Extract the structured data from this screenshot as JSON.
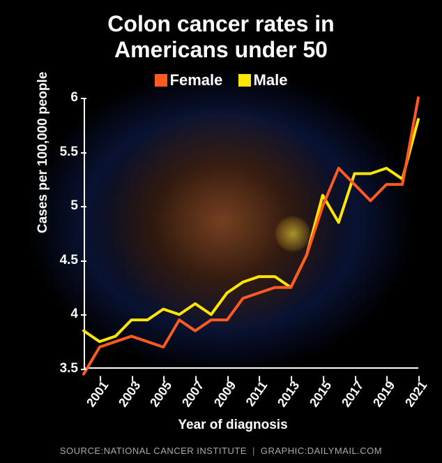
{
  "title_line1": "Colon cancer rates in",
  "title_line2": "Americans under 50",
  "legend": {
    "female": {
      "label": "Female",
      "color": "#ff5a1f"
    },
    "male": {
      "label": "Male",
      "color": "#ffe600"
    }
  },
  "chart": {
    "type": "line",
    "background_color": "transparent",
    "axis_color": "#ffffff",
    "ylabel": "Cases per 100,000 people",
    "xlabel": "Year of diagnosis",
    "ylim": [
      3.5,
      6.0
    ],
    "ytick_step": 0.5,
    "yticks": [
      3.5,
      4,
      4.5,
      5,
      5.5,
      6
    ],
    "xlim": [
      2000,
      2021
    ],
    "xticks": [
      2001,
      2003,
      2005,
      2007,
      2009,
      2011,
      2013,
      2015,
      2017,
      2019,
      2021
    ],
    "line_width": 4,
    "label_fontsize": 19,
    "tick_fontsize": 19,
    "series": {
      "female": {
        "color": "#ff5a1f",
        "years": [
          2000,
          2001,
          2002,
          2003,
          2004,
          2005,
          2006,
          2007,
          2008,
          2009,
          2010,
          2011,
          2012,
          2013,
          2014,
          2015,
          2016,
          2017,
          2018,
          2019,
          2020,
          2021
        ],
        "values": [
          3.45,
          3.7,
          3.75,
          3.8,
          3.75,
          3.7,
          3.95,
          3.85,
          3.95,
          3.95,
          4.15,
          4.2,
          4.25,
          4.25,
          4.55,
          5.0,
          5.35,
          5.2,
          5.05,
          5.2,
          5.2,
          6.0
        ]
      },
      "male": {
        "color": "#ffe600",
        "years": [
          2000,
          2001,
          2002,
          2003,
          2004,
          2005,
          2006,
          2007,
          2008,
          2009,
          2010,
          2011,
          2012,
          2013,
          2014,
          2015,
          2016,
          2017,
          2018,
          2019,
          2020,
          2021
        ],
        "values": [
          3.85,
          3.75,
          3.8,
          3.95,
          3.95,
          4.05,
          4.0,
          4.1,
          4.0,
          4.2,
          4.3,
          4.35,
          4.35,
          4.25,
          4.55,
          5.1,
          4.85,
          5.3,
          5.3,
          5.35,
          5.25,
          5.8
        ]
      }
    }
  },
  "source": {
    "prefix": "SOURCE: ",
    "name": "NATIONAL CANCER INSTITUTE",
    "credit_prefix": "GRAPHIC: ",
    "credit": "DAILYMAIL.COM"
  }
}
